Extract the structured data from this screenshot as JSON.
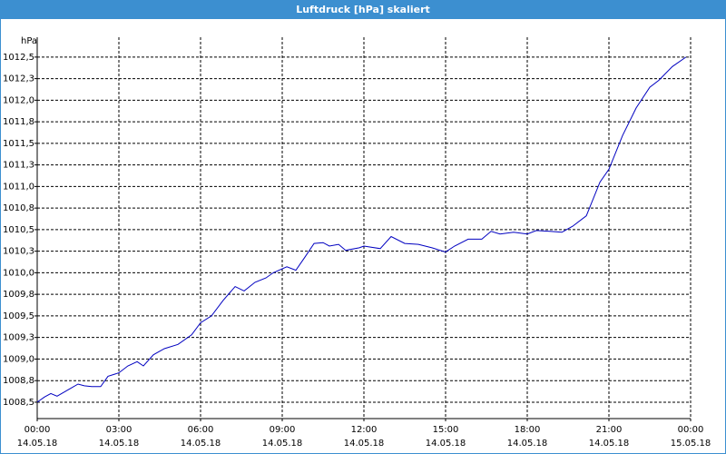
{
  "chart_data": {
    "type": "line",
    "title": "Luftdruck [hPa] skaliert",
    "y_label": "hPa",
    "xlim": [
      0,
      24
    ],
    "ylim": [
      1008.31,
      1012.73
    ],
    "grid": true,
    "xticks": [
      {
        "value": 0,
        "label": "00:00\n14.05.18"
      },
      {
        "value": 3,
        "label": "03:00\n14.05.18"
      },
      {
        "value": 6,
        "label": "06:00\n14.05.18"
      },
      {
        "value": 9,
        "label": "09:00\n14.05.18"
      },
      {
        "value": 12,
        "label": "12:00\n14.05.18"
      },
      {
        "value": 15,
        "label": "15:00\n14.05.18"
      },
      {
        "value": 18,
        "label": "18:00\n14.05.18"
      },
      {
        "value": 21,
        "label": "21:00\n14.05.18"
      },
      {
        "value": 24,
        "label": "00:00\n15.05.18"
      }
    ],
    "yticks": [
      {
        "value": 1008.5,
        "label": "1008,5"
      },
      {
        "value": 1008.75,
        "label": "1008,8"
      },
      {
        "value": 1009.0,
        "label": "1009,0"
      },
      {
        "value": 1009.25,
        "label": "1009,3"
      },
      {
        "value": 1009.5,
        "label": "1009,5"
      },
      {
        "value": 1009.75,
        "label": "1009,8"
      },
      {
        "value": 1010.0,
        "label": "1010,0"
      },
      {
        "value": 1010.25,
        "label": "1010,3"
      },
      {
        "value": 1010.5,
        "label": "1010,5"
      },
      {
        "value": 1010.75,
        "label": "1010,8"
      },
      {
        "value": 1011.0,
        "label": "1011,0"
      },
      {
        "value": 1011.25,
        "label": "1011,3"
      },
      {
        "value": 1011.5,
        "label": "1011,5"
      },
      {
        "value": 1011.75,
        "label": "1011,8"
      },
      {
        "value": 1012.0,
        "label": "1012,0"
      },
      {
        "value": 1012.25,
        "label": "1012,3"
      },
      {
        "value": 1012.5,
        "label": "1012,5"
      }
    ],
    "series": [
      {
        "name": "Luftdruck",
        "color": "#0000c0",
        "x": [
          0,
          0.27,
          0.5,
          0.73,
          1.17,
          1.5,
          1.73,
          2,
          2.33,
          2.6,
          3,
          3.33,
          3.67,
          3.9,
          4.27,
          4.67,
          5.17,
          5.67,
          6,
          6.4,
          6.83,
          7.27,
          7.6,
          8,
          8.4,
          8.67,
          9.17,
          9.5,
          9.83,
          10.17,
          10.5,
          10.73,
          11.07,
          11.33,
          11.83,
          12,
          12.6,
          13,
          13.5,
          14,
          14.5,
          15,
          15.33,
          15.83,
          16.33,
          16.67,
          17,
          17.5,
          18,
          18.33,
          18.83,
          19.27,
          19.67,
          20.17,
          20.67,
          21,
          21.5,
          22,
          22.5,
          22.83,
          23.33,
          23.83
        ],
        "values": [
          1008.5,
          1008.56,
          1008.6,
          1008.57,
          1008.65,
          1008.71,
          1008.69,
          1008.68,
          1008.68,
          1008.8,
          1008.84,
          1008.92,
          1008.97,
          1008.92,
          1009.05,
          1009.12,
          1009.17,
          1009.28,
          1009.42,
          1009.5,
          1009.68,
          1009.84,
          1009.79,
          1009.89,
          1009.94,
          1010.0,
          1010.07,
          1010.03,
          1010.18,
          1010.34,
          1010.35,
          1010.31,
          1010.33,
          1010.26,
          1010.29,
          1010.31,
          1010.28,
          1010.42,
          1010.34,
          1010.33,
          1010.29,
          1010.24,
          1010.31,
          1010.39,
          1010.39,
          1010.48,
          1010.45,
          1010.47,
          1010.45,
          1010.49,
          1010.48,
          1010.47,
          1010.54,
          1010.66,
          1011.05,
          1011.2,
          1011.59,
          1011.91,
          1012.15,
          1012.23,
          1012.39,
          1012.5
        ]
      }
    ]
  }
}
